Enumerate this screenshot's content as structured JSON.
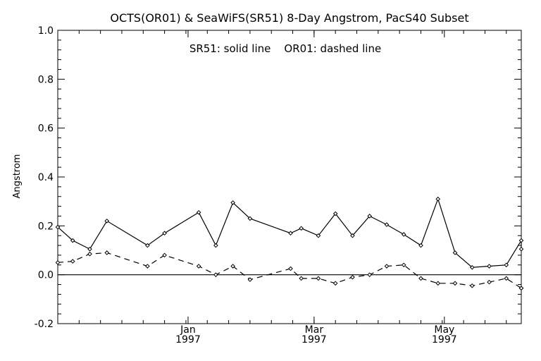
{
  "chart_data": {
    "type": "line",
    "title": "OCTS(OR01) & SeaWiFS(SR51) 8-Day Angstrom, PacS40 Subset",
    "annotation": "SR51: solid line    OR01: dashed line",
    "ylabel": "Angstrom",
    "xlabel": "",
    "ylim": [
      -0.2,
      1.0
    ],
    "y_ticks": [
      "-0.2",
      "0.0",
      "0.2",
      "0.4",
      "0.6",
      "0.8",
      "1.0"
    ],
    "x_range": [
      "1996-11-01",
      "1997-06-06"
    ],
    "x_ticks": [
      {
        "date": "1997-01-01",
        "label": "Jan",
        "year": "1997"
      },
      {
        "date": "1997-03-01",
        "label": "Mar",
        "year": "1997"
      },
      {
        "date": "1997-05-01",
        "label": "May",
        "year": "1997"
      }
    ],
    "zero_line": true,
    "grid": false,
    "series": [
      {
        "name": "SR51",
        "style": "solid",
        "x": [
          "1996-11-01",
          "1996-11-08",
          "1996-11-16",
          "1996-11-24",
          "1996-12-13",
          "1996-12-21",
          "1997-01-06",
          "1997-01-14",
          "1997-01-22",
          "1997-01-30",
          "1997-02-18",
          "1997-02-23",
          "1997-03-03",
          "1997-03-11",
          "1997-03-19",
          "1997-03-27",
          "1997-04-04",
          "1997-04-12",
          "1997-04-20",
          "1997-04-28",
          "1997-05-06",
          "1997-05-14",
          "1997-05-22",
          "1997-05-30",
          "1997-06-06",
          "1997-06-06"
        ],
        "y": [
          0.195,
          0.14,
          0.105,
          0.22,
          0.12,
          0.17,
          0.255,
          0.12,
          0.295,
          0.23,
          0.17,
          0.19,
          0.16,
          0.25,
          0.16,
          0.24,
          0.205,
          0.165,
          0.12,
          0.31,
          0.09,
          0.03,
          0.035,
          0.04,
          0.14,
          0.105
        ]
      },
      {
        "name": "OR01",
        "style": "dashed",
        "x": [
          "1996-11-01",
          "1996-11-08",
          "1996-11-16",
          "1996-11-24",
          "1996-12-13",
          "1996-12-21",
          "1997-01-06",
          "1997-01-14",
          "1997-01-22",
          "1997-01-30",
          "1997-02-18",
          "1997-02-23",
          "1997-03-03",
          "1997-03-11",
          "1997-03-19",
          "1997-03-27",
          "1997-04-04",
          "1997-04-12",
          "1997-04-20",
          "1997-04-28",
          "1997-05-06",
          "1997-05-14",
          "1997-05-22",
          "1997-05-30",
          "1997-06-06",
          "1997-06-06"
        ],
        "y": [
          0.05,
          0.055,
          0.085,
          0.09,
          0.035,
          0.08,
          0.035,
          0.0,
          0.035,
          -0.02,
          0.025,
          -0.015,
          -0.015,
          -0.035,
          -0.01,
          0.0,
          0.035,
          0.04,
          -0.015,
          -0.035,
          -0.035,
          -0.045,
          -0.03,
          -0.015,
          -0.055,
          -0.055
        ]
      }
    ]
  }
}
